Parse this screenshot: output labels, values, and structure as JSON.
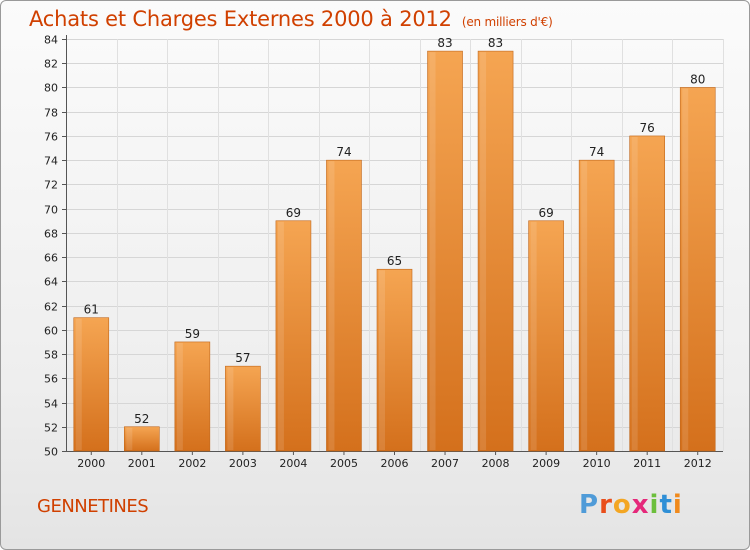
{
  "header": {
    "title": "Achats et Charges Externes 2000 à 2012",
    "subtitle": "(en milliers d'€)"
  },
  "footer": {
    "commune": "GENNETINES",
    "logo": [
      "P",
      "r",
      "o",
      "x",
      "i",
      "t",
      "i"
    ],
    "logo_colors": [
      "#4f9bd8",
      "#e94e1b",
      "#f3a623",
      "#e5287a",
      "#6cbf3c",
      "#2f8fd6",
      "#f08a1c"
    ]
  },
  "chart_data": {
    "type": "bar",
    "title": "Achats et Charges Externes 2000 à 2012",
    "subtitle": "(en milliers d'€)",
    "categories": [
      "2000",
      "2001",
      "2002",
      "2003",
      "2004",
      "2005",
      "2006",
      "2007",
      "2008",
      "2009",
      "2010",
      "2011",
      "2012"
    ],
    "values": [
      61,
      52,
      59,
      57,
      69,
      74,
      65,
      83,
      83,
      69,
      74,
      76,
      80
    ],
    "ylim": [
      50,
      84
    ],
    "yticks": [
      50,
      52,
      54,
      56,
      58,
      60,
      62,
      64,
      66,
      68,
      70,
      72,
      74,
      76,
      78,
      80,
      82,
      84
    ],
    "grid": true,
    "bar_color_top": "#f5a552",
    "bar_color_bottom": "#d4701c"
  }
}
